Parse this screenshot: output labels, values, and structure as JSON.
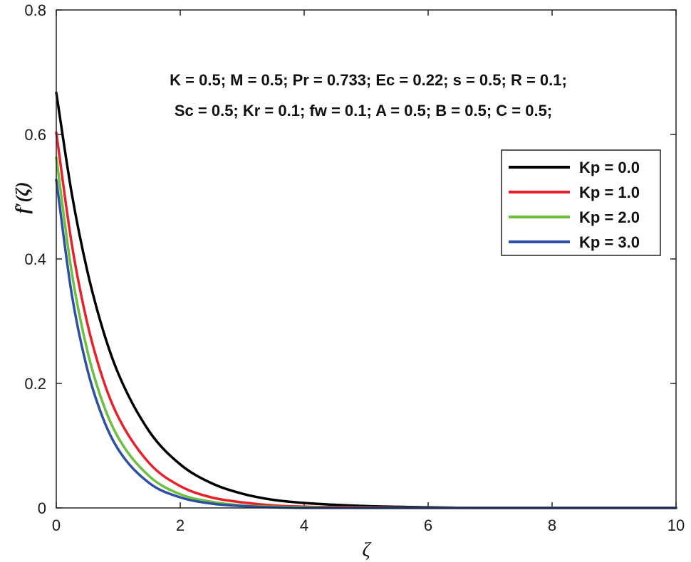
{
  "chart_data": {
    "type": "line",
    "xlabel": "ζ",
    "ylabel": "f′(ζ)",
    "xlim": [
      0,
      10
    ],
    "ylim": [
      0,
      0.8
    ],
    "xticks": [
      "0",
      "2",
      "4",
      "6",
      "8",
      "10"
    ],
    "yticks": [
      "0",
      "0.2",
      "0.4",
      "0.6",
      "0.8"
    ],
    "annotation": [
      "K = 0.5; M = 0.5; Pr = 0.733; Ec = 0.22; s = 0.5; R = 0.1;",
      "Sc = 0.5; Kr = 0.1; fw = 0.1; A = 0.5; B = 0.5; C = 0.5;"
    ],
    "legend_position": "right",
    "grid": false,
    "x": [
      0,
      0.25,
      0.5,
      0.75,
      1,
      1.5,
      2,
      2.5,
      3,
      3.5,
      4,
      5,
      6,
      7,
      8,
      10
    ],
    "series": [
      {
        "name": "Kp = 0.0",
        "color": "#000000",
        "values": [
          0.667,
          0.505,
          0.381,
          0.287,
          0.216,
          0.123,
          0.07,
          0.04,
          0.023,
          0.013,
          0.008,
          0.003,
          0.001,
          0.0,
          0.0,
          0.0
        ]
      },
      {
        "name": "Kp = 1.0",
        "color": "#e8202a",
        "values": [
          0.603,
          0.424,
          0.297,
          0.208,
          0.146,
          0.072,
          0.035,
          0.017,
          0.009,
          0.004,
          0.002,
          0.001,
          0.0,
          0.0,
          0.0,
          0.0
        ]
      },
      {
        "name": "Kp = 2.0",
        "color": "#6cbf3f",
        "values": [
          0.563,
          0.378,
          0.253,
          0.169,
          0.113,
          0.051,
          0.022,
          0.01,
          0.004,
          0.002,
          0.001,
          0.0,
          0.0,
          0.0,
          0.0,
          0.0
        ]
      },
      {
        "name": "Kp = 3.0",
        "color": "#2e4fa3",
        "values": [
          0.527,
          0.343,
          0.223,
          0.145,
          0.094,
          0.04,
          0.017,
          0.007,
          0.003,
          0.001,
          0.0,
          0.0,
          0.0,
          0.0,
          0.0,
          0.0
        ]
      }
    ]
  }
}
